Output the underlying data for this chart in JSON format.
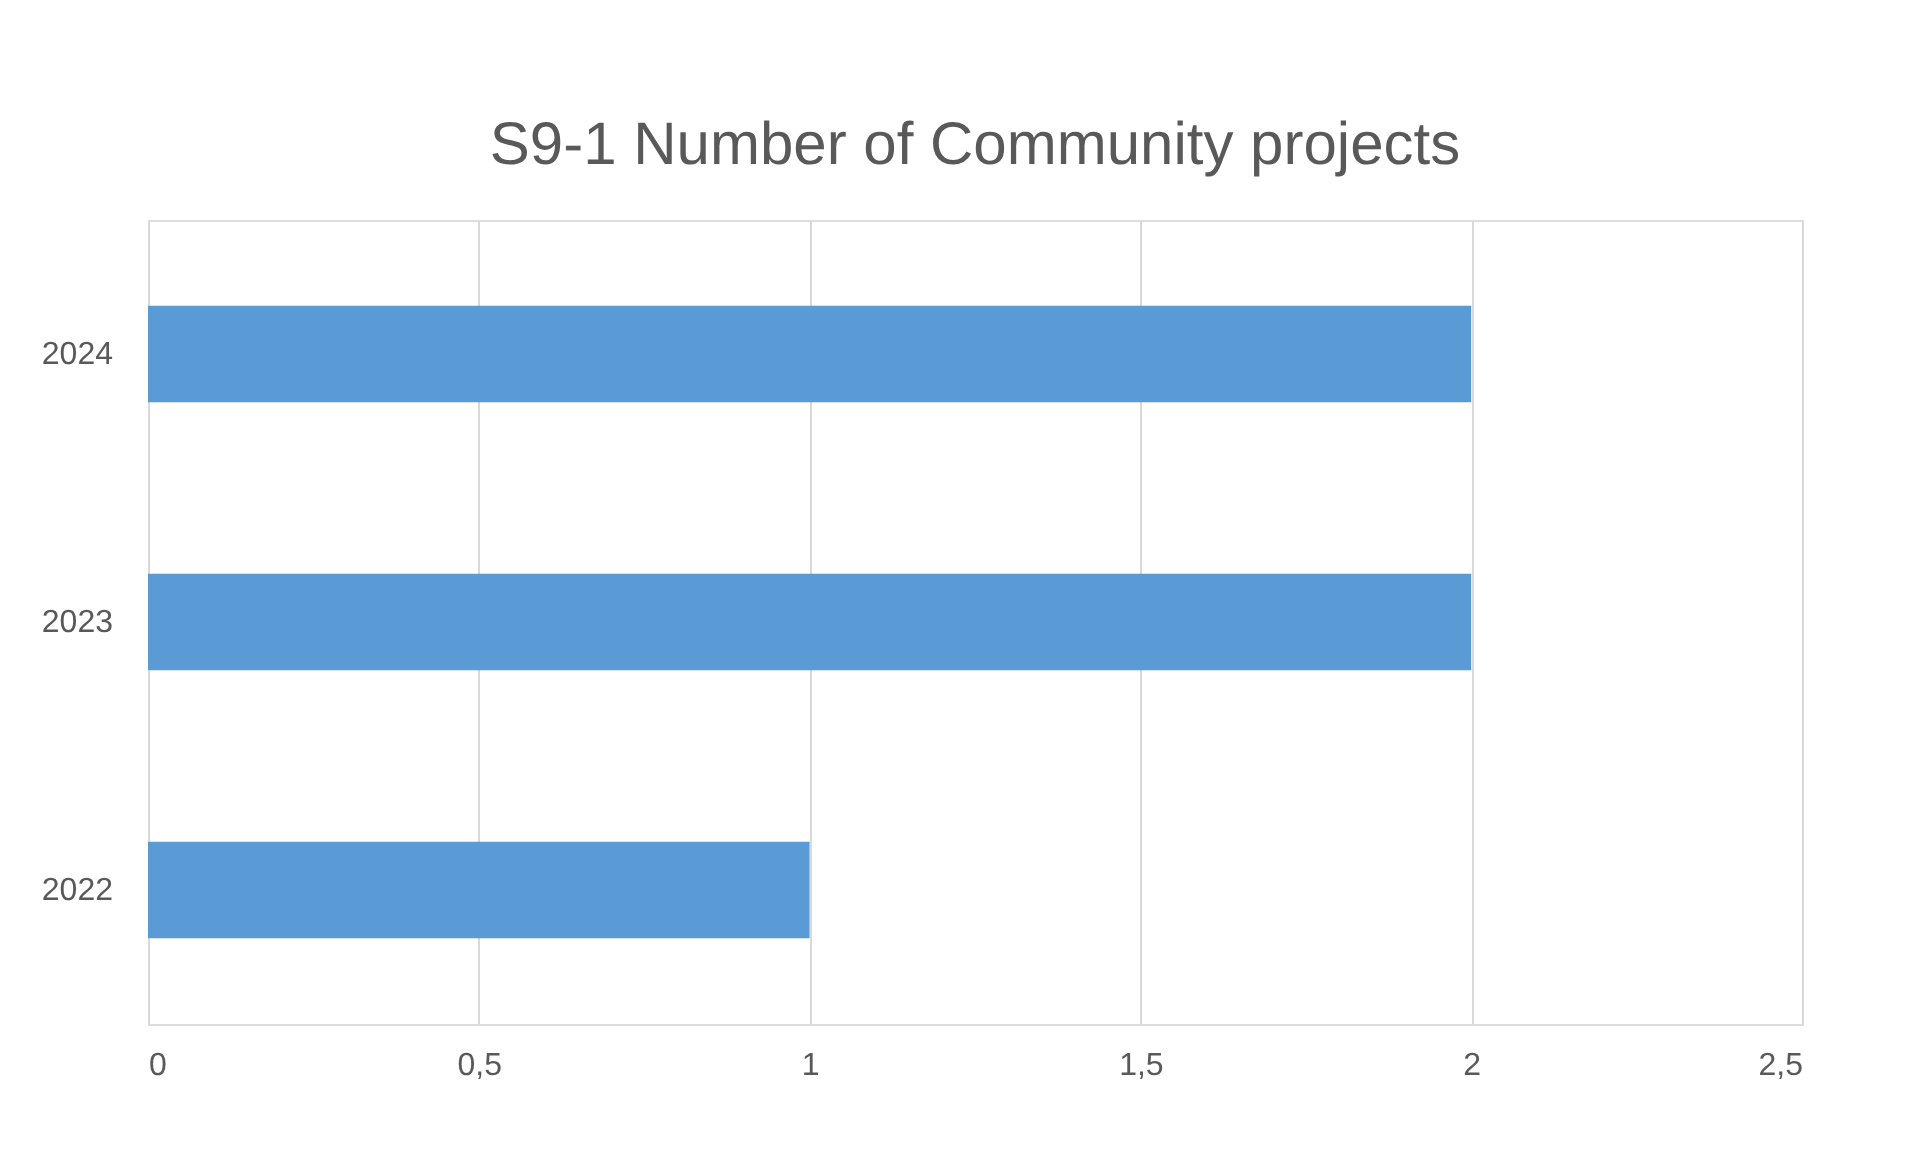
{
  "chart_data": {
    "type": "bar",
    "orientation": "horizontal",
    "title": "S9-1 Number of Community projects",
    "categories": [
      "2024",
      "2023",
      "2022"
    ],
    "values": [
      2,
      2,
      1
    ],
    "color": "#5b9bd5",
    "xlim": [
      0,
      2.5
    ],
    "xticks": [
      0,
      {
        "value": 0.5,
        "label": "0,5"
      },
      1,
      {
        "value": 1.5,
        "label": "1,5"
      },
      2,
      {
        "value": 2.5,
        "label": "2,5"
      }
    ],
    "grid": "x"
  }
}
